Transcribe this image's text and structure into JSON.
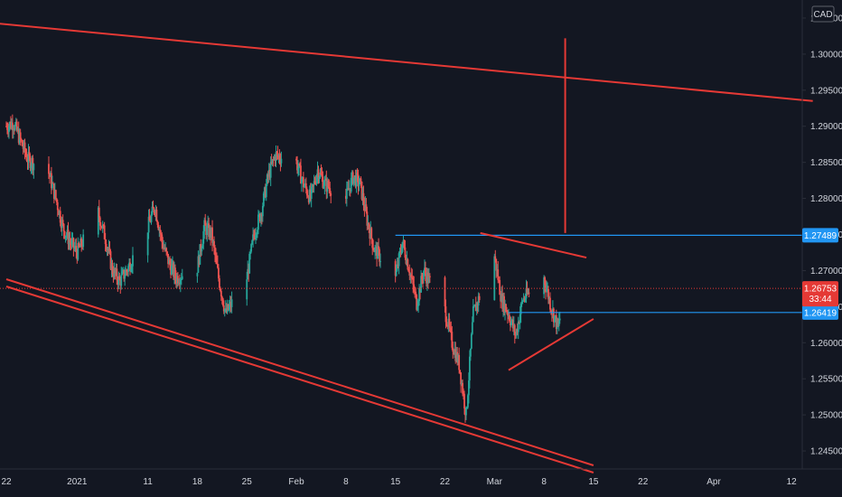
{
  "chart_data": {
    "type": "candlestick",
    "currency": "CAD",
    "price_ticks": [
      1.305,
      1.3,
      1.295,
      1.29,
      1.285,
      1.28,
      1.275,
      1.27,
      1.265,
      1.26,
      1.255,
      1.25,
      1.245
    ],
    "price_tick_labels": [
      "1.30500",
      "1.30000",
      "1.29500",
      "1.29000",
      "1.28500",
      "1.28000",
      "1.27500",
      "1.27000",
      "1.26500",
      "1.26000",
      "1.25500",
      "1.25000",
      "1.24500"
    ],
    "ylim": [
      1.2425,
      1.3075
    ],
    "time_ticks": [
      {
        "label": "22",
        "date": "2020-12-22"
      },
      {
        "label": "2021",
        "date": "2021-01-01"
      },
      {
        "label": "11",
        "date": "2021-01-11"
      },
      {
        "label": "18",
        "date": "2021-01-18"
      },
      {
        "label": "25",
        "date": "2021-01-25"
      },
      {
        "label": "Feb",
        "date": "2021-02-01"
      },
      {
        "label": "8",
        "date": "2021-02-08"
      },
      {
        "label": "15",
        "date": "2021-02-15"
      },
      {
        "label": "22",
        "date": "2021-02-22"
      },
      {
        "label": "Mar",
        "date": "2021-03-01"
      },
      {
        "label": "8",
        "date": "2021-03-08"
      },
      {
        "label": "15",
        "date": "2021-03-15"
      },
      {
        "label": "22",
        "date": "2021-03-22"
      },
      {
        "label": "Apr",
        "date": "2021-04-01"
      },
      {
        "label": "12",
        "date": "2021-04-12"
      }
    ],
    "xlim": [
      "2020-12-22",
      "2021-04-13"
    ],
    "price_path": [
      [
        "2020-12-22",
        1.29
      ],
      [
        "2020-12-23",
        1.2905
      ],
      [
        "2020-12-24",
        1.288
      ],
      [
        "2020-12-25",
        1.2855
      ],
      [
        "2020-12-28",
        1.2835
      ],
      [
        "2020-12-29",
        1.28
      ],
      [
        "2020-12-30",
        1.276
      ],
      [
        "2020-12-31",
        1.274
      ],
      [
        "2021-01-01",
        1.2725
      ],
      [
        "2021-01-04",
        1.278
      ],
      [
        "2021-01-05",
        1.2745
      ],
      [
        "2021-01-06",
        1.27
      ],
      [
        "2021-01-07",
        1.2685
      ],
      [
        "2021-01-08",
        1.27
      ],
      [
        "2021-01-11",
        1.276
      ],
      [
        "2021-01-12",
        1.279
      ],
      [
        "2021-01-13",
        1.274
      ],
      [
        "2021-01-14",
        1.271
      ],
      [
        "2021-01-15",
        1.269
      ],
      [
        "2021-01-18",
        1.2705
      ],
      [
        "2021-01-19",
        1.276
      ],
      [
        "2021-01-20",
        1.275
      ],
      [
        "2021-01-21",
        1.269
      ],
      [
        "2021-01-22",
        1.264
      ],
      [
        "2021-01-25",
        1.269
      ],
      [
        "2021-01-26",
        1.275
      ],
      [
        "2021-01-27",
        1.278
      ],
      [
        "2021-01-28",
        1.283
      ],
      [
        "2021-01-29",
        1.286
      ],
      [
        "2021-02-01",
        1.285
      ],
      [
        "2021-02-02",
        1.282
      ],
      [
        "2021-02-03",
        1.28
      ],
      [
        "2021-02-04",
        1.284
      ],
      [
        "2021-02-05",
        1.282
      ],
      [
        "2021-02-08",
        1.28
      ],
      [
        "2021-02-09",
        1.283
      ],
      [
        "2021-02-10",
        1.282
      ],
      [
        "2021-02-11",
        1.277
      ],
      [
        "2021-02-12",
        1.273
      ],
      [
        "2021-02-15",
        1.269
      ],
      [
        "2021-02-16",
        1.274
      ],
      [
        "2021-02-17",
        1.27
      ],
      [
        "2021-02-18",
        1.2655
      ],
      [
        "2021-02-19",
        1.27
      ],
      [
        "2021-02-22",
        1.2645
      ],
      [
        "2021-02-23",
        1.26
      ],
      [
        "2021-02-24",
        1.257
      ],
      [
        "2021-02-25",
        1.25
      ],
      [
        "2021-02-26",
        1.264
      ],
      [
        "2021-03-01",
        1.272
      ],
      [
        "2021-03-02",
        1.266
      ],
      [
        "2021-03-03",
        1.264
      ],
      [
        "2021-03-04",
        1.261
      ],
      [
        "2021-03-05",
        1.266
      ],
      [
        "2021-03-08",
        1.269
      ],
      [
        "2021-03-09",
        1.265
      ],
      [
        "2021-03-10",
        1.262
      ],
      [
        "2021-03-11",
        1.2675
      ]
    ],
    "horizontal_lines": [
      {
        "price": 1.27489,
        "from": "2021-02-15",
        "color": "#2196f3",
        "label": "1.27489"
      },
      {
        "price": 1.26419,
        "from": "2021-03-03",
        "color": "#2196f3",
        "label": "1.26419"
      }
    ],
    "trend_lines": [
      {
        "from": [
          "2020-12-02",
          1.306
        ],
        "to": [
          "2021-04-15",
          1.2935
        ],
        "color": "#e53935"
      },
      {
        "from": [
          "2020-12-22",
          1.2688
        ],
        "to": [
          "2021-03-15",
          1.243
        ],
        "color": "#e53935"
      },
      {
        "from": [
          "2020-12-22",
          1.2678
        ],
        "to": [
          "2021-03-15",
          1.242
        ],
        "color": "#e53935"
      },
      {
        "from": [
          "2021-02-27",
          1.2752
        ],
        "to": [
          "2021-03-14",
          1.2718
        ],
        "color": "#e53935"
      },
      {
        "from": [
          "2021-03-03",
          1.2562
        ],
        "to": [
          "2021-03-15",
          1.2633
        ],
        "color": "#e53935"
      },
      {
        "from": [
          "2021-03-11",
          1.3022
        ],
        "to": [
          "2021-03-11",
          1.2752
        ],
        "color": "#e53935"
      }
    ],
    "current_price": {
      "price": 1.26753,
      "label": "1.26753",
      "countdown": "33:44",
      "color": "#e53935"
    },
    "colors": {
      "background": "#131722",
      "up": "#26a69a",
      "down": "#ef5350",
      "axis_text": "#d1d4dc",
      "axis_line": "#2a2e39"
    }
  }
}
